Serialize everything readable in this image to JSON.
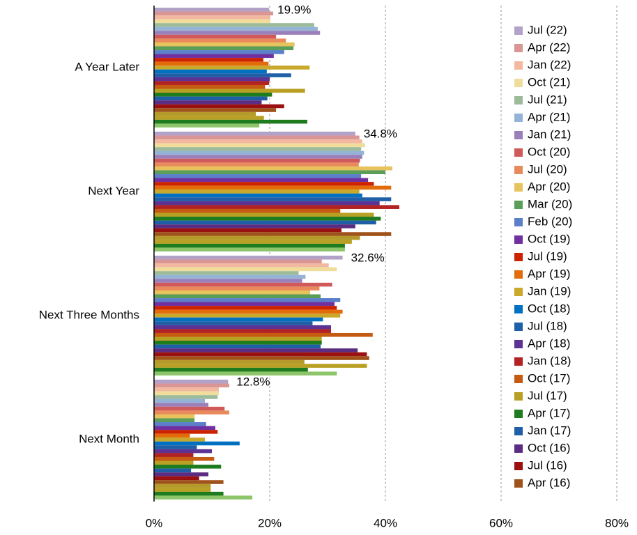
{
  "chart_data": {
    "type": "hbar",
    "categories": [
      "A Year Later",
      "Next Year",
      "Next Three Months",
      "Next Month"
    ],
    "xlim": [
      0,
      80
    ],
    "xticks": [
      {
        "value": 0,
        "label": "0%"
      },
      {
        "value": 20,
        "label": "20%"
      },
      {
        "value": 40,
        "label": "40%"
      },
      {
        "value": 60,
        "label": "60%"
      },
      {
        "value": 80,
        "label": "80%"
      }
    ],
    "grid": true,
    "legend": "right",
    "series": [
      {
        "name": "Jul (22)",
        "color": "#b3a2c7",
        "values": [
          19.9,
          34.8,
          32.6,
          12.8
        ],
        "value_labels": [
          "19.9%",
          "34.8%",
          "32.6%",
          "12.8%"
        ]
      },
      {
        "name": "Apr (22)",
        "color": "#d99694",
        "values": [
          20.6,
          35.5,
          29.0,
          13.0
        ]
      },
      {
        "name": "Jan (22)",
        "color": "#f2b8a0",
        "values": [
          20.1,
          36.0,
          30.2,
          11.2
        ]
      },
      {
        "name": "Oct (21)",
        "color": "#f0dd9c",
        "values": [
          20.1,
          36.5,
          31.6,
          11.2
        ]
      },
      {
        "name": "Jul (21)",
        "color": "#9bbb9b",
        "values": [
          27.7,
          35.8,
          25.0,
          11.0
        ]
      },
      {
        "name": "Apr (21)",
        "color": "#95b3d7",
        "values": [
          28.3,
          36.3,
          26.2,
          8.8
        ]
      },
      {
        "name": "Jan (21)",
        "color": "#9b7fb8",
        "values": [
          28.7,
          36.0,
          25.6,
          9.4
        ]
      },
      {
        "name": "Oct (20)",
        "color": "#d05a5a",
        "values": [
          21.1,
          35.6,
          30.8,
          12.2
        ]
      },
      {
        "name": "Jul (20)",
        "color": "#e98a5c",
        "values": [
          22.8,
          35.4,
          28.6,
          13.0
        ]
      },
      {
        "name": "Apr (20)",
        "color": "#e6c35c",
        "values": [
          24.3,
          41.2,
          27.0,
          7.0
        ]
      },
      {
        "name": "Mar (20)",
        "color": "#5a9e5a",
        "values": [
          24.1,
          40.0,
          28.8,
          7.0
        ]
      },
      {
        "name": "Feb (20)",
        "color": "#5b7fc9",
        "values": [
          22.5,
          35.8,
          32.2,
          9.0
        ]
      },
      {
        "name": "Oct (19)",
        "color": "#7030a0",
        "values": [
          20.7,
          37.0,
          31.2,
          10.6
        ]
      },
      {
        "name": "Jul (19)",
        "color": "#cc2200",
        "values": [
          18.9,
          38.0,
          31.6,
          11.0
        ]
      },
      {
        "name": "Apr (19)",
        "color": "#e36c0a",
        "values": [
          19.8,
          41.0,
          32.6,
          6.2
        ]
      },
      {
        "name": "Jan (19)",
        "color": "#c9a82a",
        "values": [
          26.9,
          35.5,
          32.2,
          8.8
        ]
      },
      {
        "name": "Oct (18)",
        "color": "#0070c0",
        "values": [
          19.5,
          36.0,
          29.2,
          14.8
        ]
      },
      {
        "name": "Jul (18)",
        "color": "#1f5fa8",
        "values": [
          23.7,
          41.0,
          27.4,
          7.4
        ]
      },
      {
        "name": "Apr (18)",
        "color": "#5c3292",
        "values": [
          20.0,
          39.0,
          30.6,
          10.0
        ]
      },
      {
        "name": "Jan (18)",
        "color": "#b22222",
        "values": [
          19.9,
          42.4,
          30.6,
          6.8
        ]
      },
      {
        "name": "Oct (17)",
        "color": "#c55a11",
        "values": [
          19.2,
          32.2,
          37.8,
          10.4
        ]
      },
      {
        "name": "Jul (17)",
        "color": "#b8a024",
        "values": [
          26.1,
          38.0,
          29.0,
          6.8
        ]
      },
      {
        "name": "Apr (17)",
        "color": "#1e7b1e",
        "values": [
          20.4,
          39.2,
          29.0,
          11.6
        ]
      },
      {
        "name": "Jan (17)",
        "color": "#1f5fa8",
        "values": [
          19.6,
          38.4,
          28.8,
          6.4
        ]
      },
      {
        "name": "Oct (16)",
        "color": "#5a2d82",
        "values": [
          18.6,
          34.8,
          35.2,
          9.4
        ]
      },
      {
        "name": "Jul (16)",
        "color": "#9b1010",
        "values": [
          22.5,
          32.4,
          36.8,
          7.8
        ]
      },
      {
        "name": "Apr (16)",
        "color": "#a0521b",
        "values": [
          21.1,
          41.0,
          37.2,
          12.0
        ]
      },
      {
        "name": null,
        "color": "#b39a2a",
        "values": [
          17.6,
          35.6,
          26.0,
          9.8
        ]
      },
      {
        "name": null,
        "color": "#b8a024",
        "values": [
          19.0,
          34.2,
          36.8,
          9.8
        ]
      },
      {
        "name": null,
        "color": "#1e7b1e",
        "values": [
          26.5,
          33.0,
          26.6,
          12.0
        ]
      },
      {
        "name": null,
        "color": "#8dc56b",
        "values": [
          18.2,
          33.0,
          31.6,
          17.0
        ]
      }
    ]
  }
}
